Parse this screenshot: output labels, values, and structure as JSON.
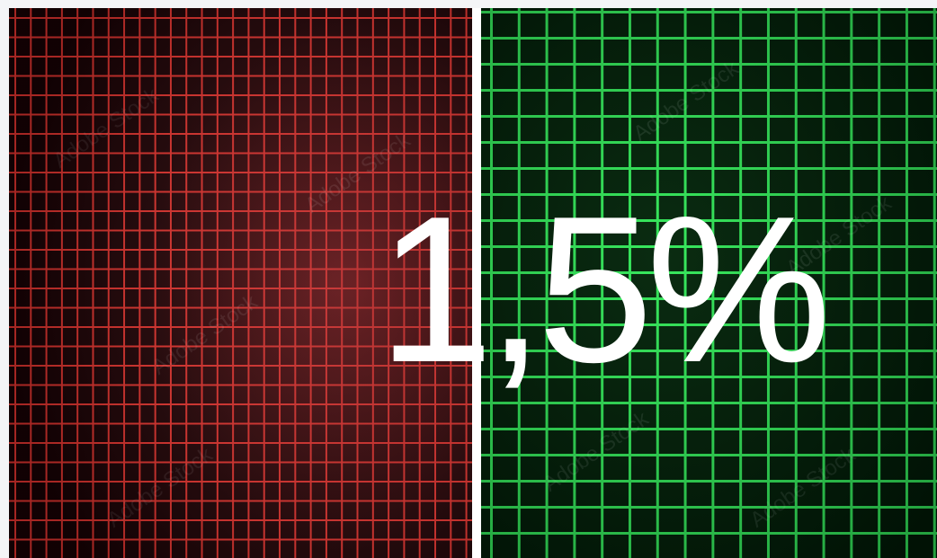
{
  "headline": {
    "value": "1,5%"
  },
  "colors": {
    "red_grid": "#ff3b35",
    "red_background": "#1a0205",
    "green_grid": "#33e85a",
    "green_background": "#011a07",
    "divider": "#ffffff",
    "text": "#ffffff"
  },
  "watermark": {
    "text": "Adobe Stock"
  }
}
